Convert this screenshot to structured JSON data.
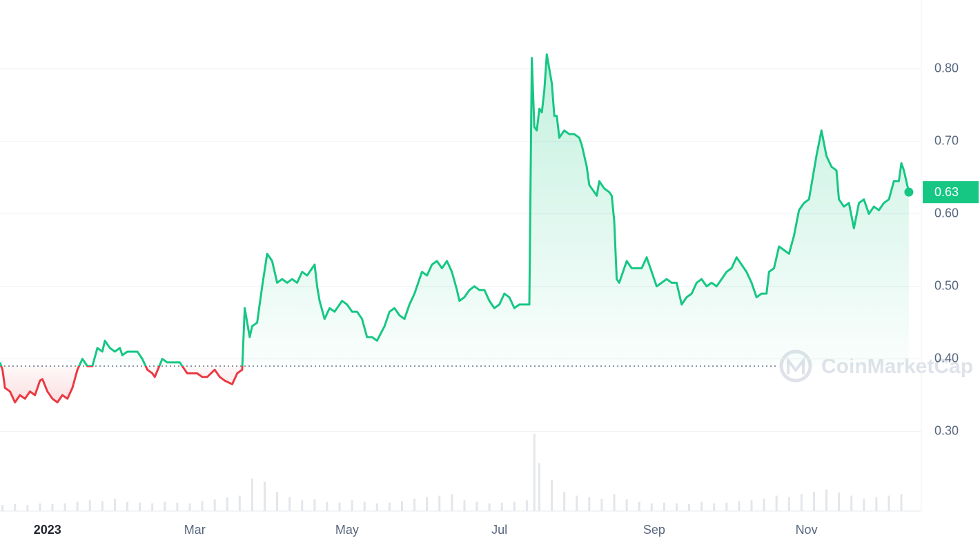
{
  "chart_data": {
    "type": "line",
    "watermark": "CoinMarketCap",
    "x": [
      -19,
      -18,
      -17,
      -15,
      -13,
      -11,
      -9,
      -7,
      -5,
      -3,
      -2,
      0,
      2,
      4,
      6,
      8,
      10,
      12,
      14,
      16,
      18,
      20,
      22,
      23,
      25,
      27,
      29,
      30,
      32,
      34,
      36,
      38,
      40,
      42,
      43,
      46,
      48,
      50,
      53,
      55,
      56,
      58,
      60,
      62,
      64,
      67,
      69,
      71,
      74,
      76,
      78,
      79,
      81,
      82,
      84,
      86,
      88,
      90,
      92,
      94,
      96,
      98,
      100,
      102,
      104,
      106,
      107,
      108,
      109,
      111,
      113,
      115,
      118,
      120,
      122,
      124,
      126,
      128,
      130,
      132,
      135,
      137,
      139,
      141,
      143,
      145,
      147,
      150,
      152,
      154,
      156,
      158,
      160,
      162,
      164,
      165,
      167,
      169,
      171,
      173,
      175,
      177,
      179,
      181,
      183,
      185,
      187,
      189,
      191,
      193,
      194,
      195,
      196,
      197,
      198,
      199,
      200,
      202,
      203,
      204,
      205,
      207,
      209,
      211,
      213,
      214,
      216,
      217,
      219,
      220,
      221,
      223,
      225,
      226,
      227,
      228,
      229,
      231,
      232,
      234,
      236,
      238,
      240,
      242,
      244,
      246,
      248,
      250,
      252,
      254,
      256,
      258,
      260,
      262,
      264,
      266,
      268,
      270,
      272,
      274,
      276,
      278,
      280,
      282,
      284,
      286,
      288,
      289,
      291,
      293,
      295,
      297,
      299,
      301,
      303,
      305,
      308,
      310,
      312,
      314,
      316,
      317,
      319,
      321,
      323,
      325,
      327,
      329,
      331,
      333,
      335,
      337,
      339,
      341,
      342,
      343,
      345
    ],
    "values": [
      0.395,
      0.385,
      0.36,
      0.355,
      0.34,
      0.35,
      0.345,
      0.355,
      0.35,
      0.37,
      0.372,
      0.355,
      0.345,
      0.34,
      0.35,
      0.345,
      0.36,
      0.385,
      0.4,
      0.39,
      0.39,
      0.415,
      0.41,
      0.425,
      0.415,
      0.41,
      0.415,
      0.405,
      0.41,
      0.41,
      0.41,
      0.4,
      0.385,
      0.38,
      0.375,
      0.4,
      0.395,
      0.395,
      0.395,
      0.385,
      0.38,
      0.38,
      0.38,
      0.375,
      0.375,
      0.385,
      0.375,
      0.37,
      0.365,
      0.38,
      0.385,
      0.47,
      0.43,
      0.445,
      0.45,
      0.5,
      0.545,
      0.535,
      0.505,
      0.51,
      0.505,
      0.51,
      0.505,
      0.52,
      0.515,
      0.525,
      0.53,
      0.5,
      0.48,
      0.455,
      0.47,
      0.465,
      0.48,
      0.475,
      0.465,
      0.465,
      0.455,
      0.43,
      0.43,
      0.425,
      0.445,
      0.465,
      0.47,
      0.46,
      0.455,
      0.475,
      0.49,
      0.52,
      0.515,
      0.53,
      0.535,
      0.525,
      0.535,
      0.52,
      0.495,
      0.48,
      0.485,
      0.495,
      0.5,
      0.495,
      0.495,
      0.48,
      0.47,
      0.475,
      0.49,
      0.485,
      0.47,
      0.475,
      0.475,
      0.475,
      0.815,
      0.72,
      0.715,
      0.745,
      0.74,
      0.77,
      0.82,
      0.78,
      0.735,
      0.735,
      0.705,
      0.715,
      0.71,
      0.71,
      0.705,
      0.695,
      0.665,
      0.64,
      0.63,
      0.625,
      0.645,
      0.635,
      0.63,
      0.625,
      0.59,
      0.51,
      0.505,
      0.525,
      0.535,
      0.525,
      0.525,
      0.525,
      0.54,
      0.52,
      0.5,
      0.505,
      0.51,
      0.505,
      0.505,
      0.475,
      0.485,
      0.49,
      0.505,
      0.51,
      0.5,
      0.505,
      0.5,
      0.51,
      0.52,
      0.525,
      0.54,
      0.53,
      0.52,
      0.505,
      0.485,
      0.49,
      0.49,
      0.52,
      0.525,
      0.555,
      0.55,
      0.545,
      0.57,
      0.605,
      0.615,
      0.62,
      0.68,
      0.715,
      0.68,
      0.665,
      0.66,
      0.62,
      0.61,
      0.615,
      0.58,
      0.615,
      0.62,
      0.6,
      0.61,
      0.605,
      0.615,
      0.62,
      0.645,
      0.645,
      0.67,
      0.66,
      0.63
    ],
    "baseline": 0.39,
    "current_value": 0.63,
    "color_up": "#16c784",
    "color_down": "#ea3943",
    "xlim": [
      -19,
      350
    ],
    "xticks": [
      {
        "value": 0,
        "label": "2023"
      },
      {
        "value": 59,
        "label": "Mar"
      },
      {
        "value": 120,
        "label": "May"
      },
      {
        "value": 181,
        "label": "Jul"
      },
      {
        "value": 243,
        "label": "Sep"
      },
      {
        "value": 304,
        "label": "Nov"
      }
    ],
    "ylim": [
      0.19,
      0.895
    ],
    "yticks": [
      {
        "value": 0.3,
        "label": "0.30"
      },
      {
        "value": 0.4,
        "label": "0.40"
      },
      {
        "value": 0.5,
        "label": "0.50"
      },
      {
        "value": 0.6,
        "label": "0.60"
      },
      {
        "value": 0.7,
        "label": "0.70"
      },
      {
        "value": 0.8,
        "label": "0.80"
      }
    ],
    "grid": true,
    "volume": {
      "color": "#e3e6ea",
      "lim": [
        0,
        100
      ],
      "x": [
        -18,
        -13,
        -8,
        -3,
        2,
        7,
        12,
        17,
        22,
        27,
        32,
        37,
        42,
        47,
        52,
        57,
        62,
        67,
        72,
        77,
        82,
        87,
        92,
        97,
        102,
        107,
        112,
        117,
        122,
        127,
        132,
        137,
        142,
        147,
        152,
        157,
        162,
        167,
        172,
        177,
        182,
        187,
        192,
        195,
        197,
        202,
        207,
        212,
        217,
        222,
        227,
        232,
        237,
        242,
        247,
        252,
        257,
        262,
        267,
        272,
        277,
        282,
        287,
        292,
        297,
        302,
        307,
        312,
        317,
        322,
        327,
        332,
        337,
        342
      ],
      "values": [
        8,
        9,
        8,
        10,
        9,
        10,
        12,
        14,
        13,
        16,
        12,
        11,
        10,
        12,
        11,
        10,
        13,
        15,
        18,
        20,
        42,
        38,
        25,
        18,
        14,
        15,
        12,
        11,
        14,
        12,
        10,
        11,
        13,
        16,
        18,
        20,
        22,
        14,
        12,
        10,
        11,
        12,
        14,
        100,
        62,
        40,
        25,
        20,
        18,
        16,
        22,
        15,
        12,
        10,
        11,
        10,
        9,
        12,
        10,
        11,
        13,
        14,
        16,
        20,
        18,
        22,
        25,
        28,
        24,
        20,
        16,
        18,
        20,
        22
      ]
    }
  }
}
